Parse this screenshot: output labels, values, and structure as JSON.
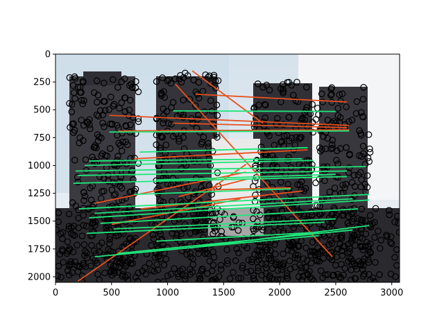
{
  "chart_data": {
    "type": "scatter",
    "title": "",
    "xlabel": "",
    "ylabel": "",
    "xlim": [
      0,
      3070
    ],
    "ylim": [
      2050,
      0
    ],
    "y_inverted": true,
    "x_ticks": [
      0,
      500,
      1000,
      1500,
      2000,
      2500,
      3000
    ],
    "y_ticks": [
      0,
      250,
      500,
      750,
      1000,
      1250,
      1500,
      1750,
      2000
    ],
    "background": "photograph of a cathedral facade with two towers",
    "keypoint_marker": "open circle",
    "keypoint_color": "#000000",
    "inlier_color": "#1ee87a",
    "outlier_color": "#e8501e",
    "inlier_matches": [
      [
        1050,
        510,
        2500,
        515
      ],
      [
        480,
        700,
        2620,
        690
      ],
      [
        750,
        880,
        2250,
        840
      ],
      [
        300,
        960,
        2200,
        940
      ],
      [
        260,
        1000,
        2300,
        955
      ],
      [
        180,
        1050,
        2770,
        1010
      ],
      [
        200,
        1090,
        2600,
        1050
      ],
      [
        160,
        1160,
        2600,
        1100
      ],
      [
        900,
        1130,
        2500,
        1080
      ],
      [
        700,
        1260,
        2100,
        1210
      ],
      [
        210,
        1390,
        2800,
        1260
      ],
      [
        350,
        1430,
        2650,
        1300
      ],
      [
        300,
        1470,
        2800,
        1310
      ],
      [
        400,
        1520,
        2700,
        1390
      ],
      [
        280,
        1610,
        2400,
        1510
      ],
      [
        520,
        1570,
        2500,
        1480
      ],
      [
        900,
        1680,
        2350,
        1600
      ],
      [
        350,
        1820,
        2350,
        1630
      ],
      [
        560,
        1790,
        2650,
        1580
      ],
      [
        1200,
        1740,
        2800,
        1540
      ]
    ],
    "outlier_matches": [
      [
        480,
        550,
        2620,
        640
      ],
      [
        560,
        690,
        2620,
        680
      ],
      [
        1050,
        620,
        2600,
        660
      ],
      [
        1250,
        360,
        2600,
        430
      ],
      [
        1220,
        150,
        1850,
        620
      ],
      [
        700,
        940,
        2250,
        860
      ],
      [
        1070,
        270,
        2470,
        1820
      ],
      [
        350,
        1340,
        1700,
        1060
      ],
      [
        1100,
        1280,
        1720,
        1120
      ],
      [
        760,
        1390,
        2200,
        1230
      ],
      [
        500,
        1530,
        1650,
        1300
      ],
      [
        200,
        2040,
        1700,
        990
      ],
      [
        1370,
        1220,
        2100,
        1200
      ]
    ]
  }
}
